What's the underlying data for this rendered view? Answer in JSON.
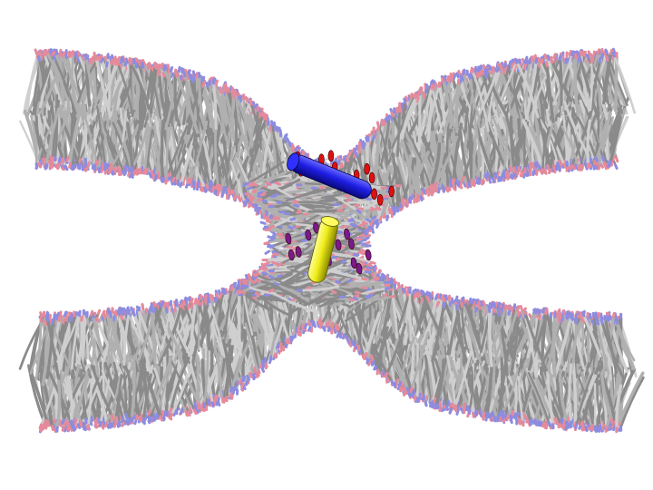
{
  "scene": {
    "subject": "molecular-dynamics-membrane-fusion-stalk",
    "background": "#ffffff",
    "membranes": [
      {
        "id": "upper-bilayer",
        "tail_color": "#cfcfcf",
        "tail_shadow": "#8a8a8a",
        "head_colors": [
          "#e58a9a",
          "#8c8ce0"
        ]
      },
      {
        "id": "lower-bilayer",
        "tail_color": "#cfcfcf",
        "tail_shadow": "#8a8a8a",
        "head_colors": [
          "#e58a9a",
          "#8c8ce0"
        ]
      }
    ],
    "peptides": [
      {
        "id": "upper-helix",
        "cylinder_color": "#1f1fe6",
        "coil_color": "#e01010"
      },
      {
        "id": "lower-helix",
        "cylinder_color": "#f0ee1a",
        "coil_color": "#7a1a8c"
      }
    ]
  }
}
